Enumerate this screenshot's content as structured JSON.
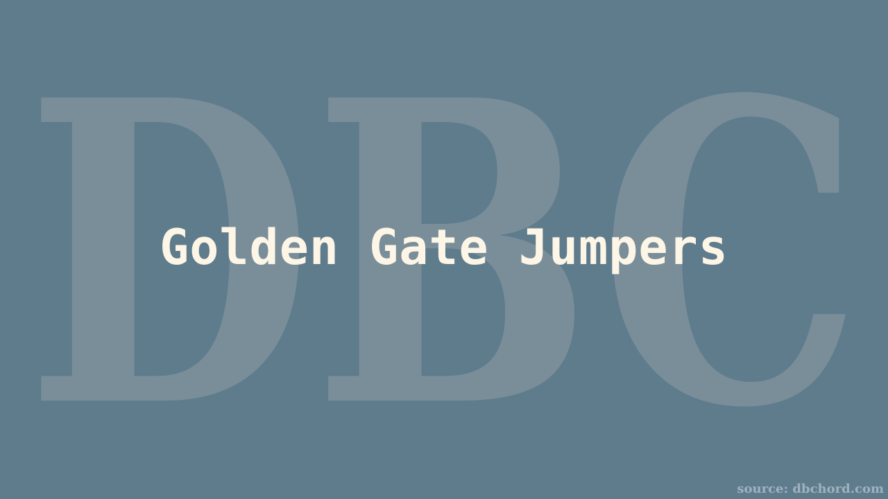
{
  "watermark": {
    "text": "DBC",
    "color": "#7a8e9a"
  },
  "title": "Golden Gate Jumpers",
  "source": "source: dbchord.com",
  "colors": {
    "background": "#5f7c8d",
    "title": "#fdf5e6",
    "source": "#9fb2bf"
  }
}
